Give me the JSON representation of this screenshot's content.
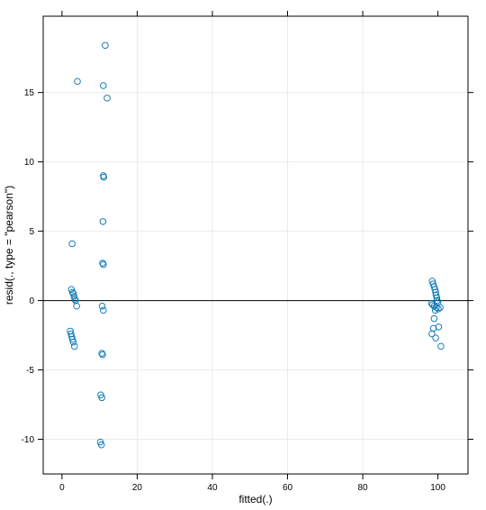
{
  "chart_data": {
    "type": "scatter",
    "xlabel": "fitted(.)",
    "ylabel": "resid(., type = \"pearson\")",
    "xlim": [
      -5,
      108
    ],
    "ylim": [
      -12.5,
      20.5
    ],
    "x_ticks": [
      0,
      20,
      40,
      60,
      80,
      100
    ],
    "y_ticks": [
      -10,
      -5,
      0,
      5,
      10,
      15
    ],
    "x_tick_labels": [
      "0",
      "20",
      "40",
      "60",
      "80",
      "100"
    ],
    "y_tick_labels": [
      "-10",
      "-5",
      "0",
      "5",
      "10",
      "15"
    ],
    "grid": true,
    "reference_line_y": 0,
    "point_color": "#0072B2",
    "series": [
      {
        "points": [
          [
            4.1,
            15.8
          ],
          [
            11.5,
            18.4
          ],
          [
            11.0,
            15.5
          ],
          [
            12.0,
            14.6
          ],
          [
            11.0,
            9.0
          ],
          [
            11.1,
            8.9
          ],
          [
            10.9,
            5.7
          ],
          [
            10.8,
            2.7
          ],
          [
            11.0,
            2.6
          ],
          [
            2.7,
            4.1
          ],
          [
            2.5,
            0.8
          ],
          [
            2.8,
            0.6
          ],
          [
            3.0,
            0.5
          ],
          [
            3.2,
            0.3
          ],
          [
            3.4,
            0.1
          ],
          [
            3.6,
            0.0
          ],
          [
            3.9,
            -0.4
          ],
          [
            2.2,
            -2.2
          ],
          [
            2.4,
            -2.4
          ],
          [
            2.6,
            -2.6
          ],
          [
            2.8,
            -2.8
          ],
          [
            3.0,
            -3.0
          ],
          [
            3.3,
            -3.3
          ],
          [
            10.7,
            -0.4
          ],
          [
            11.0,
            -0.7
          ],
          [
            10.6,
            -3.8
          ],
          [
            10.8,
            -3.9
          ],
          [
            10.3,
            -6.8
          ],
          [
            10.6,
            -7.0
          ],
          [
            10.2,
            -10.2
          ],
          [
            10.5,
            -10.4
          ],
          [
            98.5,
            1.4
          ],
          [
            98.7,
            1.2
          ],
          [
            99.0,
            1.0
          ],
          [
            99.2,
            0.8
          ],
          [
            99.4,
            0.6
          ],
          [
            99.5,
            0.4
          ],
          [
            99.7,
            0.2
          ],
          [
            99.8,
            0.0
          ],
          [
            100.0,
            -0.1
          ],
          [
            98.3,
            -0.2
          ],
          [
            98.6,
            -0.3
          ],
          [
            99.0,
            -0.4
          ],
          [
            99.6,
            -0.5
          ],
          [
            100.1,
            -0.6
          ],
          [
            100.6,
            -0.5
          ],
          [
            99.3,
            -0.7
          ],
          [
            99.0,
            -1.3
          ],
          [
            100.2,
            -1.9
          ],
          [
            98.8,
            -2.0
          ],
          [
            98.4,
            -2.4
          ],
          [
            99.4,
            -2.7
          ],
          [
            100.8,
            -3.3
          ]
        ]
      }
    ]
  }
}
